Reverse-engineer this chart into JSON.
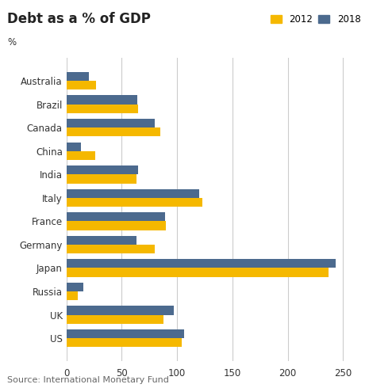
{
  "title": "Debt as a % of GDP",
  "pct_label": "%",
  "source": "Source: International Monetary Fund",
  "categories": [
    "Australia",
    "Brazil",
    "Canada",
    "China",
    "India",
    "Italy",
    "France",
    "Germany",
    "Japan",
    "Russia",
    "UK",
    "US"
  ],
  "values_2012": [
    27,
    65,
    85,
    26,
    63,
    123,
    90,
    80,
    237,
    10,
    88,
    104
  ],
  "values_2018": [
    20,
    64,
    80,
    13,
    65,
    120,
    89,
    63,
    243,
    15,
    97,
    106
  ],
  "color_2012": "#F5B800",
  "color_2018": "#4C6A8E",
  "xlim": [
    0,
    260
  ],
  "xticks": [
    0,
    50,
    100,
    150,
    200,
    250
  ],
  "legend_labels": [
    "2012",
    "2018"
  ],
  "bar_height": 0.38,
  "title_fontsize": 12,
  "axis_fontsize": 8.5,
  "source_fontsize": 8,
  "label_fontsize": 8.5,
  "background_color": "#ffffff",
  "grid_color": "#cccccc",
  "text_color": "#333333"
}
